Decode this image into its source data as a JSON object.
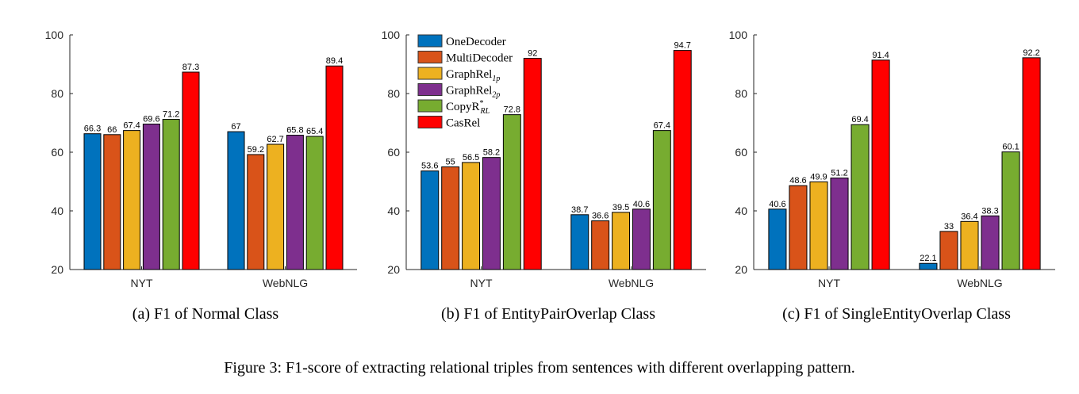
{
  "figure_caption": "Figure 3: F1-score of extracting relational triples from sentences with different overlapping pattern.",
  "legend": [
    {
      "label": "OneDecoder",
      "color": "#0072BD"
    },
    {
      "label": "MultiDecoder",
      "color": "#D95319"
    },
    {
      "label": "GraphRel",
      "sub": "1p",
      "color": "#EDB120"
    },
    {
      "label": "GraphRel",
      "sub": "2p",
      "color": "#7E2F8E"
    },
    {
      "label": "CopyR",
      "sup": "*",
      "sub": "RL",
      "color": "#77AC30"
    },
    {
      "label": "CasRel",
      "color": "#FF0000"
    }
  ],
  "chart_data": [
    {
      "type": "bar",
      "caption": "(a)  F1 of Normal Class",
      "categories": [
        "NYT",
        "WebNLG"
      ],
      "ylim": [
        20,
        100
      ],
      "yticks": [
        20,
        40,
        60,
        80,
        100
      ],
      "legend": false,
      "series": [
        {
          "name": "OneDecoder",
          "values": [
            66.3,
            67
          ]
        },
        {
          "name": "MultiDecoder",
          "values": [
            66,
            59.2
          ]
        },
        {
          "name": "GraphRel1p",
          "values": [
            67.4,
            62.7
          ]
        },
        {
          "name": "GraphRel2p",
          "values": [
            69.6,
            65.8
          ]
        },
        {
          "name": "CopyR*RL",
          "values": [
            71.2,
            65.4
          ]
        },
        {
          "name": "CasRel",
          "values": [
            87.3,
            89.4
          ]
        }
      ]
    },
    {
      "type": "bar",
      "caption": "(b)  F1 of EntityPairOverlap Class",
      "categories": [
        "NYT",
        "WebNLG"
      ],
      "ylim": [
        20,
        100
      ],
      "yticks": [
        20,
        40,
        60,
        80,
        100
      ],
      "legend": "top-left",
      "series": [
        {
          "name": "OneDecoder",
          "values": [
            53.6,
            38.7
          ]
        },
        {
          "name": "MultiDecoder",
          "values": [
            55,
            36.6
          ]
        },
        {
          "name": "GraphRel1p",
          "values": [
            56.5,
            39.5
          ]
        },
        {
          "name": "GraphRel2p",
          "values": [
            58.2,
            40.6
          ]
        },
        {
          "name": "CopyR*RL",
          "values": [
            72.8,
            67.4
          ]
        },
        {
          "name": "CasRel",
          "values": [
            92,
            94.7
          ]
        }
      ]
    },
    {
      "type": "bar",
      "caption": "(c)  F1 of SingleEntityOverlap Class",
      "categories": [
        "NYT",
        "WebNLG"
      ],
      "ylim": [
        20,
        100
      ],
      "yticks": [
        20,
        40,
        60,
        80,
        100
      ],
      "legend": false,
      "series": [
        {
          "name": "OneDecoder",
          "values": [
            40.6,
            22.1
          ]
        },
        {
          "name": "MultiDecoder",
          "values": [
            48.6,
            33
          ]
        },
        {
          "name": "GraphRel1p",
          "values": [
            49.9,
            36.4
          ]
        },
        {
          "name": "GraphRel2p",
          "values": [
            51.2,
            38.3
          ]
        },
        {
          "name": "CopyR*RL",
          "values": [
            69.4,
            60.1
          ]
        },
        {
          "name": "CasRel",
          "values": [
            91.4,
            92.2
          ]
        }
      ]
    }
  ]
}
